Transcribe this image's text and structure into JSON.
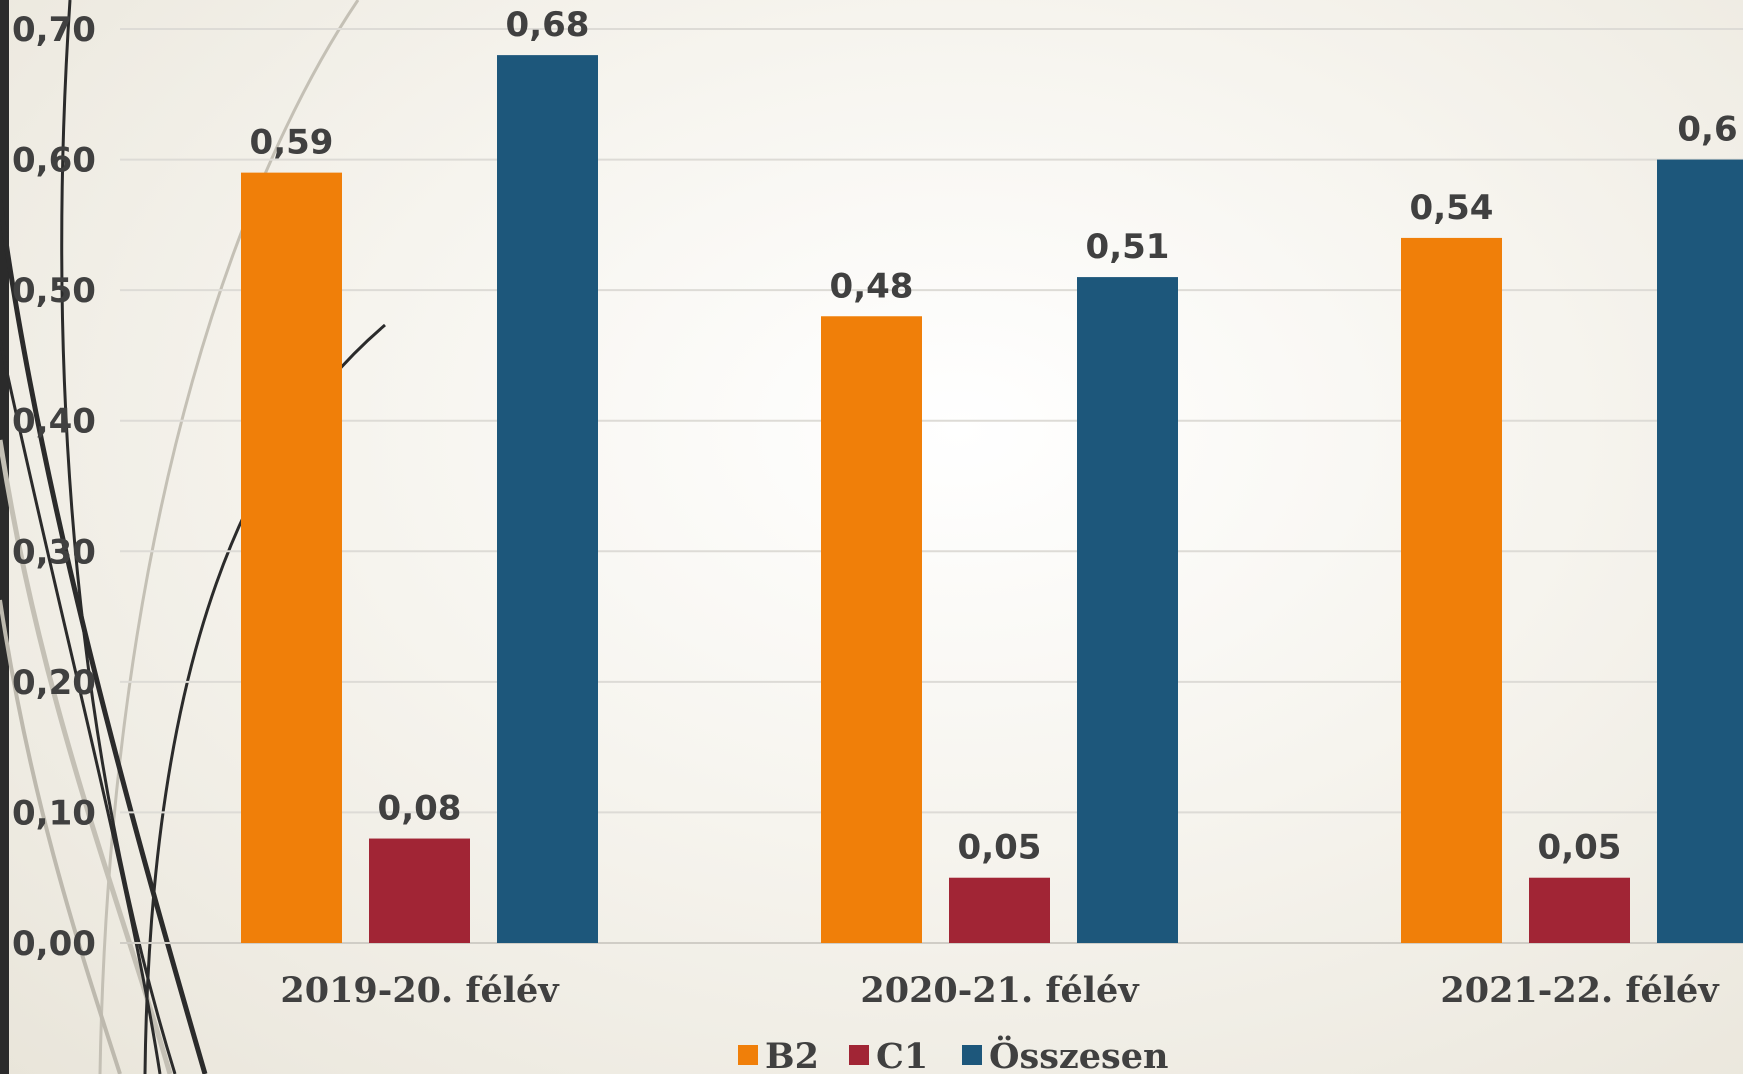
{
  "chart_data": {
    "type": "bar",
    "categories": [
      "2019-20. félév",
      "2020-21. félév",
      "2021-22. félév"
    ],
    "series": [
      {
        "name": "B2",
        "color": "#F07F09",
        "values": [
          0.59,
          0.48,
          0.54
        ],
        "labels": [
          "0,59",
          "0,48",
          "0,54"
        ]
      },
      {
        "name": "C1",
        "color": "#A12535",
        "values": [
          0.08,
          0.05,
          0.05
        ],
        "labels": [
          "0,08",
          "0,05",
          "0,05"
        ]
      },
      {
        "name": "Összesen",
        "color": "#1D577B",
        "values": [
          0.68,
          0.51,
          0.6
        ],
        "labels": [
          "0,68",
          "0,51",
          "0,6"
        ]
      }
    ],
    "ylim": [
      0,
      0.7
    ],
    "yticks": [
      "0,00",
      "0,10",
      "0,20",
      "0,30",
      "0,40",
      "0,50",
      "0,60",
      "0,70"
    ],
    "grid": true,
    "legend": "bottom",
    "title": "",
    "xlabel": "",
    "ylabel": ""
  }
}
